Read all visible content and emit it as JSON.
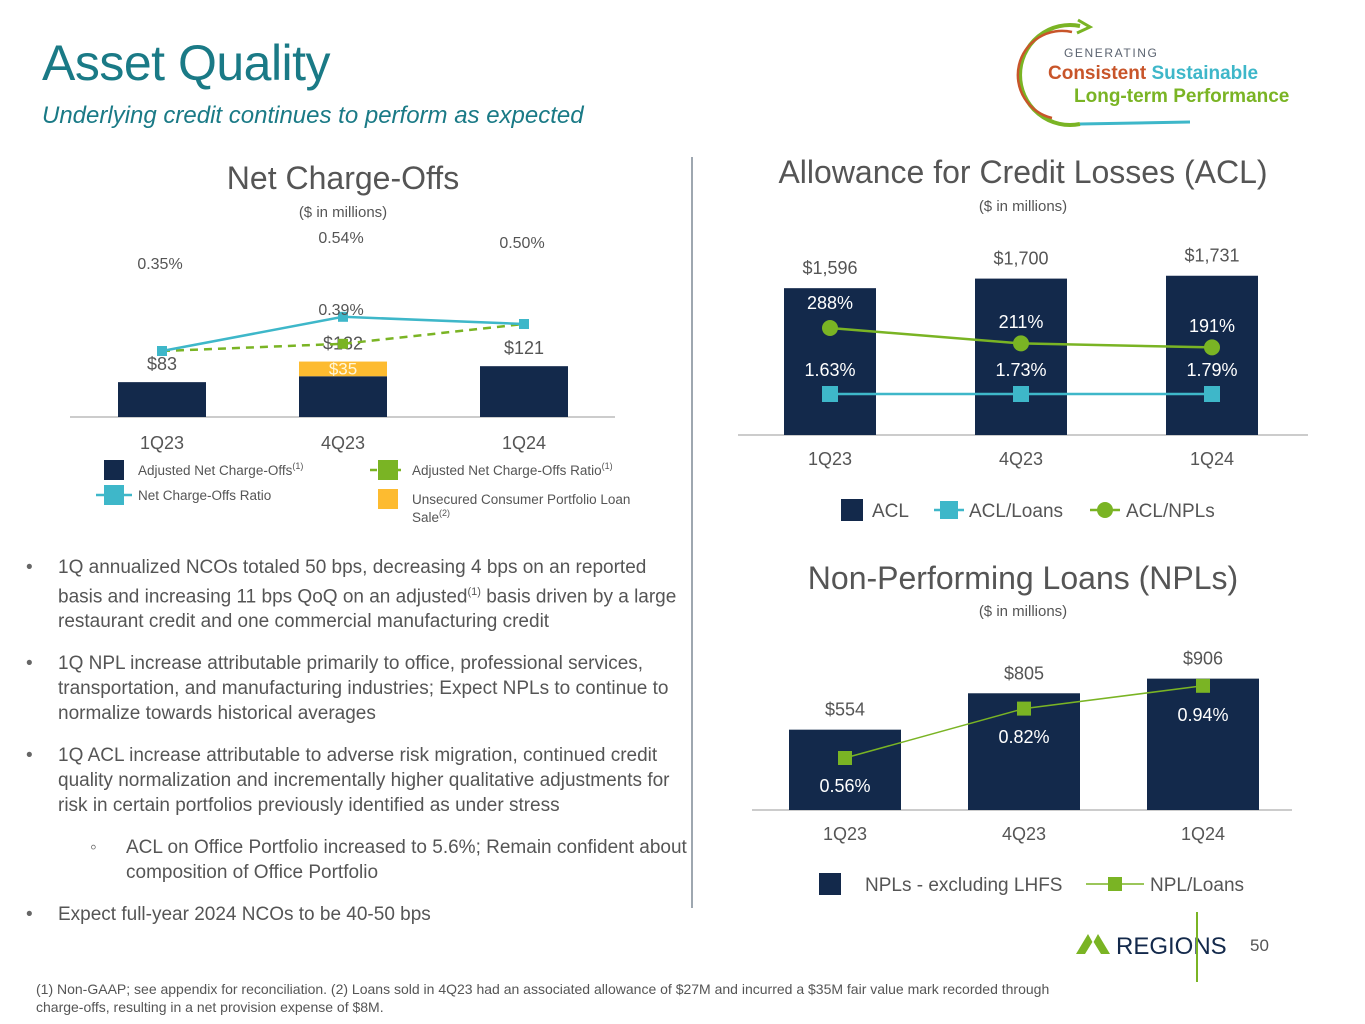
{
  "header": {
    "title": "Asset Quality",
    "subtitle": "Underlying credit continues to perform as expected"
  },
  "logo": {
    "line1": "GENERATING",
    "word_consistent": "Consistent",
    "word_sustainable": "Sustainable",
    "line3": "Long-term Performance"
  },
  "colors": {
    "navy": "#13294b",
    "gold": "#fdbb30",
    "light_blue": "#3eb7c9",
    "green": "#7ab424",
    "teal_title": "#1a7a86"
  },
  "bullets": [
    {
      "text_a": "1Q annualized NCOs totaled 50 bps, decreasing 4 bps on an reported basis and increasing 11 bps QoQ on an adjusted",
      "sup": "(1)",
      "text_b": " basis driven by a large restaurant credit and one commercial manufacturing credit"
    },
    {
      "text": "1Q NPL increase attributable primarily to office, professional services, transportation, and manufacturing industries; Expect NPLs to continue to normalize towards historical averages"
    },
    {
      "text": "1Q ACL increase attributable to adverse risk migration, continued credit quality normalization and incrementally higher qualitative adjustments for risk in certain portfolios previously identified as under stress"
    },
    {
      "text": "ACL on Office Portfolio increased to 5.6%; Remain confident about composition of Office Portfolio"
    },
    {
      "text": "Expect full-year 2024 NCOs to be 40-50 bps"
    }
  ],
  "footnote": "(1)  Non-GAAP; see appendix for reconciliation. (2) Loans sold in 4Q23 had an associated allowance of $27M and incurred a $35M fair value mark recorded through charge-offs, resulting in a net provision expense of $8M.",
  "footer": {
    "brand": "REGIONS",
    "page": "50"
  },
  "chart_data": [
    {
      "id": "nco",
      "type": "bar",
      "title": "Net Charge-Offs",
      "subtitle": "($ in millions)",
      "categories": [
        "1Q23",
        "4Q23",
        "1Q24"
      ],
      "series": [
        {
          "name": "Adjusted Net Charge-Offs",
          "name_sup": "(1)",
          "kind": "bar",
          "values": [
            83,
            97,
            121
          ]
        },
        {
          "name": "Unsecured Consumer Portfolio Loan Sale",
          "name_sup": "(2)",
          "kind": "bar-stack",
          "values": [
            null,
            35,
            null
          ],
          "labels": [
            "",
            "$35",
            ""
          ]
        },
        {
          "name": "Net Charge-Offs Ratio",
          "kind": "line",
          "values": [
            0.35,
            0.54,
            0.5
          ],
          "labels": [
            "0.35%",
            "0.54%",
            "0.50%"
          ]
        },
        {
          "name": "Adjusted Net Charge-Offs Ratio",
          "name_sup": "(1)",
          "kind": "dashed-line",
          "values": [
            0.35,
            0.39,
            0.5
          ],
          "labels": [
            "",
            "0.39%",
            ""
          ]
        }
      ],
      "totals": [
        "$83",
        "$132",
        "$121"
      ]
    },
    {
      "id": "acl",
      "type": "bar",
      "title": "Allowance for Credit Losses (ACL)",
      "subtitle": "($ in millions)",
      "categories": [
        "1Q23",
        "4Q23",
        "1Q24"
      ],
      "series": [
        {
          "name": "ACL",
          "kind": "bar",
          "values": [
            1596,
            1700,
            1731
          ],
          "labels": [
            "$1,596",
            "$1,700",
            "$1,731"
          ]
        },
        {
          "name": "ACL/Loans",
          "kind": "line",
          "values": [
            1.63,
            1.73,
            1.79
          ],
          "labels": [
            "1.63%",
            "1.73%",
            "1.79%"
          ]
        },
        {
          "name": "ACL/NPLs",
          "kind": "line",
          "values": [
            288,
            211,
            191
          ],
          "labels": [
            "288%",
            "211%",
            "191%"
          ]
        }
      ]
    },
    {
      "id": "npl",
      "type": "bar",
      "title": "Non-Performing Loans (NPLs)",
      "subtitle": "($ in millions)",
      "categories": [
        "1Q23",
        "4Q23",
        "1Q24"
      ],
      "series": [
        {
          "name": "NPLs - excluding LHFS",
          "kind": "bar",
          "values": [
            554,
            805,
            906
          ],
          "labels": [
            "$554",
            "$805",
            "$906"
          ]
        },
        {
          "name": "NPL/Loans",
          "kind": "line",
          "values": [
            0.56,
            0.82,
            0.94
          ],
          "labels": [
            "0.56%",
            "0.82%",
            "0.94%"
          ]
        }
      ]
    }
  ]
}
